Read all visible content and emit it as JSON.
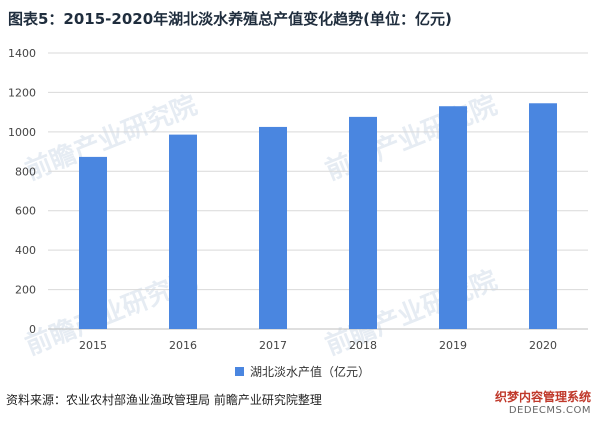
{
  "title": "图表5：2015-2020年湖北淡水养殖总产值变化趋势(单位：亿元)",
  "source": "资料来源：农业农村部渔业渔政管理局 前瞻产业研究院整理",
  "watermark": {
    "brand": "前瞻产业研究院",
    "site": "dedecms.com",
    "site_label": "织梦内容管理系统",
    "site_url": "DEDECMS.COM"
  },
  "colors": {
    "bar": "#4a86e0",
    "grid": "#d9d9d9",
    "axis": "#bfbfbf",
    "tick_text": "#444444"
  },
  "chart_data": {
    "type": "bar",
    "title": "图表5：2015-2020年湖北淡水养殖总产值变化趋势(单位：亿元)",
    "categories": [
      "2015",
      "2016",
      "2017",
      "2018",
      "2019",
      "2020"
    ],
    "series": [
      {
        "name": "湖北淡水产值（亿元）",
        "values": [
          873,
          986,
          1025,
          1076,
          1130,
          1145
        ]
      }
    ],
    "ylim": [
      0,
      1400
    ],
    "yticks": [
      0,
      200,
      400,
      600,
      800,
      1000,
      1200,
      1400
    ],
    "grid": true,
    "legend_position": "bottom"
  }
}
